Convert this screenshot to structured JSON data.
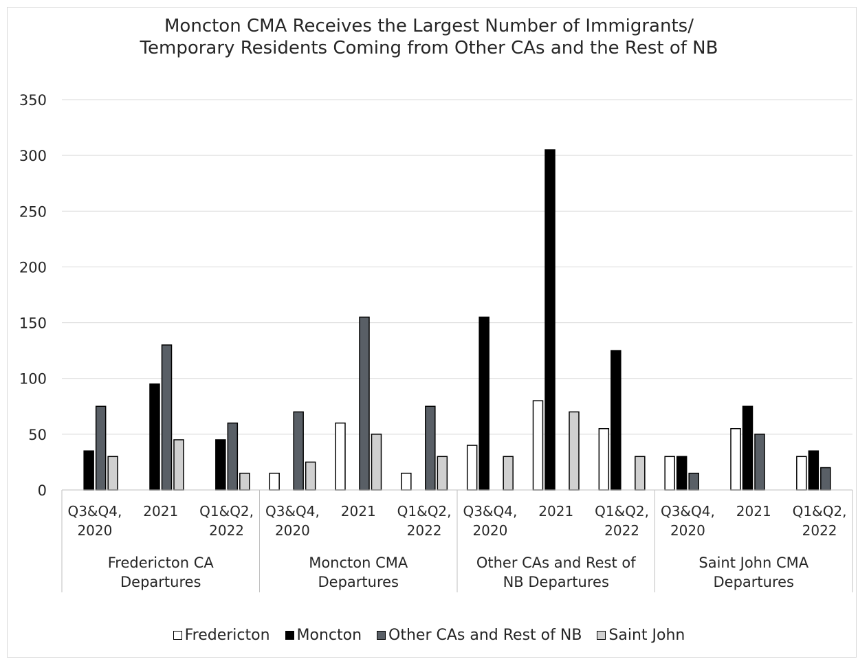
{
  "chart_data": {
    "type": "bar",
    "title_lines": [
      "Moncton CMA Receives the Largest Number of Immigrants/",
      "Temporary Residents Coming from Other CAs and the Rest of NB"
    ],
    "ylim": [
      0,
      350
    ],
    "yticks": [
      0,
      50,
      100,
      150,
      200,
      250,
      300,
      350
    ],
    "grid": true,
    "legend_position": "bottom",
    "groups": [
      {
        "label_lines": [
          "Fredericton CA",
          "Departures"
        ],
        "categories": [
          {
            "label_lines": [
              "Q3&Q4,",
              "2020"
            ],
            "values": [
              0,
              35,
              75,
              30
            ]
          },
          {
            "label_lines": [
              "2021"
            ],
            "values": [
              0,
              95,
              130,
              45
            ]
          },
          {
            "label_lines": [
              "Q1&Q2,",
              "2022"
            ],
            "values": [
              0,
              45,
              60,
              15
            ]
          }
        ]
      },
      {
        "label_lines": [
          "Moncton CMA",
          "Departures"
        ],
        "categories": [
          {
            "label_lines": [
              "Q3&Q4,",
              "2020"
            ],
            "values": [
              15,
              0,
              70,
              25
            ]
          },
          {
            "label_lines": [
              "2021"
            ],
            "values": [
              60,
              0,
              155,
              50
            ]
          },
          {
            "label_lines": [
              "Q1&Q2,",
              "2022"
            ],
            "values": [
              15,
              0,
              75,
              30
            ]
          }
        ]
      },
      {
        "label_lines": [
          "Other CAs and Rest of",
          "NB  Departures"
        ],
        "categories": [
          {
            "label_lines": [
              "Q3&Q4,",
              "2020"
            ],
            "values": [
              40,
              155,
              0,
              30
            ]
          },
          {
            "label_lines": [
              "2021"
            ],
            "values": [
              80,
              305,
              0,
              70
            ]
          },
          {
            "label_lines": [
              "Q1&Q2,",
              "2022"
            ],
            "values": [
              55,
              125,
              0,
              30
            ]
          }
        ]
      },
      {
        "label_lines": [
          "Saint John CMA",
          "Departures"
        ],
        "categories": [
          {
            "label_lines": [
              "Q3&Q4,",
              "2020"
            ],
            "values": [
              30,
              30,
              15,
              0
            ]
          },
          {
            "label_lines": [
              "2021"
            ],
            "values": [
              55,
              75,
              50,
              0
            ]
          },
          {
            "label_lines": [
              "Q1&Q2,",
              "2022"
            ],
            "values": [
              30,
              35,
              20,
              0
            ]
          }
        ]
      }
    ],
    "series": [
      {
        "name": "Fredericton",
        "color": "#ffffff"
      },
      {
        "name": "Moncton",
        "color": "#000000"
      },
      {
        "name": "Other CAs and Rest of NB",
        "color": "#595f66"
      },
      {
        "name": "Saint John",
        "color": "#d0d0d0"
      }
    ]
  }
}
